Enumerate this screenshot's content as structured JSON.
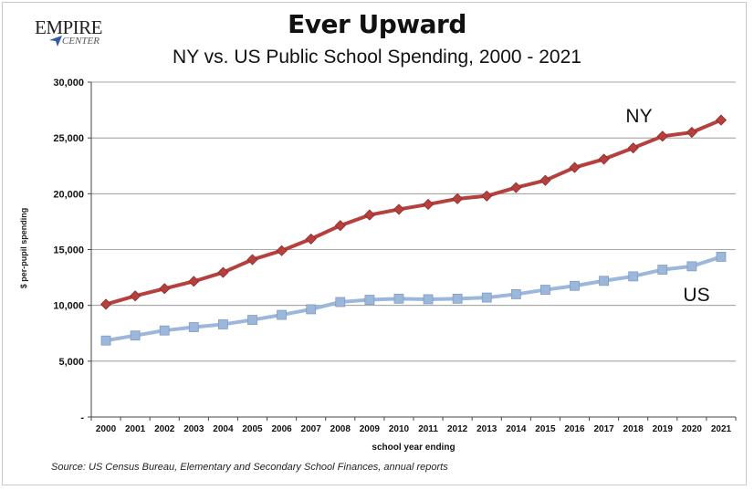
{
  "logo": {
    "top": "EMPIRE",
    "bottom": "CENTER"
  },
  "chart_data": {
    "type": "line",
    "title": "Ever Upward",
    "subtitle": "NY vs. US Public School Spending, 2000 - 2021",
    "xlabel": "school year ending",
    "ylabel": "$ per-pupil spending",
    "source": "Source: US Census Bureau, Elementary and Secondary School Finances, annual reports",
    "categories": [
      "2000",
      "2001",
      "2002",
      "2003",
      "2004",
      "2005",
      "2006",
      "2007",
      "2008",
      "2009",
      "2010",
      "2011",
      "2012",
      "2013",
      "2014",
      "2015",
      "2016",
      "2017",
      "2018",
      "2019",
      "2020",
      "2021"
    ],
    "y_ticks": [
      0,
      5000,
      10000,
      15000,
      20000,
      25000,
      30000
    ],
    "y_tick_labels": [
      "-",
      "5,000",
      "10,000",
      "15,000",
      "20,000",
      "25,000",
      "30,000"
    ],
    "ylim": [
      0,
      30000
    ],
    "grid": "horizontal",
    "series": [
      {
        "name": "NY",
        "color": "#b5403d",
        "marker": "diamond",
        "values": [
          10100,
          10850,
          11500,
          12150,
          12950,
          14100,
          14900,
          15950,
          17150,
          18100,
          18600,
          19050,
          19550,
          19800,
          20550,
          21200,
          22350,
          23100,
          24100,
          25150,
          25500,
          26600
        ]
      },
      {
        "name": "US",
        "color": "#9cb7da",
        "marker": "square",
        "values": [
          6850,
          7300,
          7750,
          8050,
          8300,
          8700,
          9150,
          9650,
          10300,
          10500,
          10600,
          10550,
          10600,
          10700,
          11000,
          11400,
          11750,
          12200,
          12600,
          13200,
          13500,
          14350
        ]
      }
    ]
  }
}
